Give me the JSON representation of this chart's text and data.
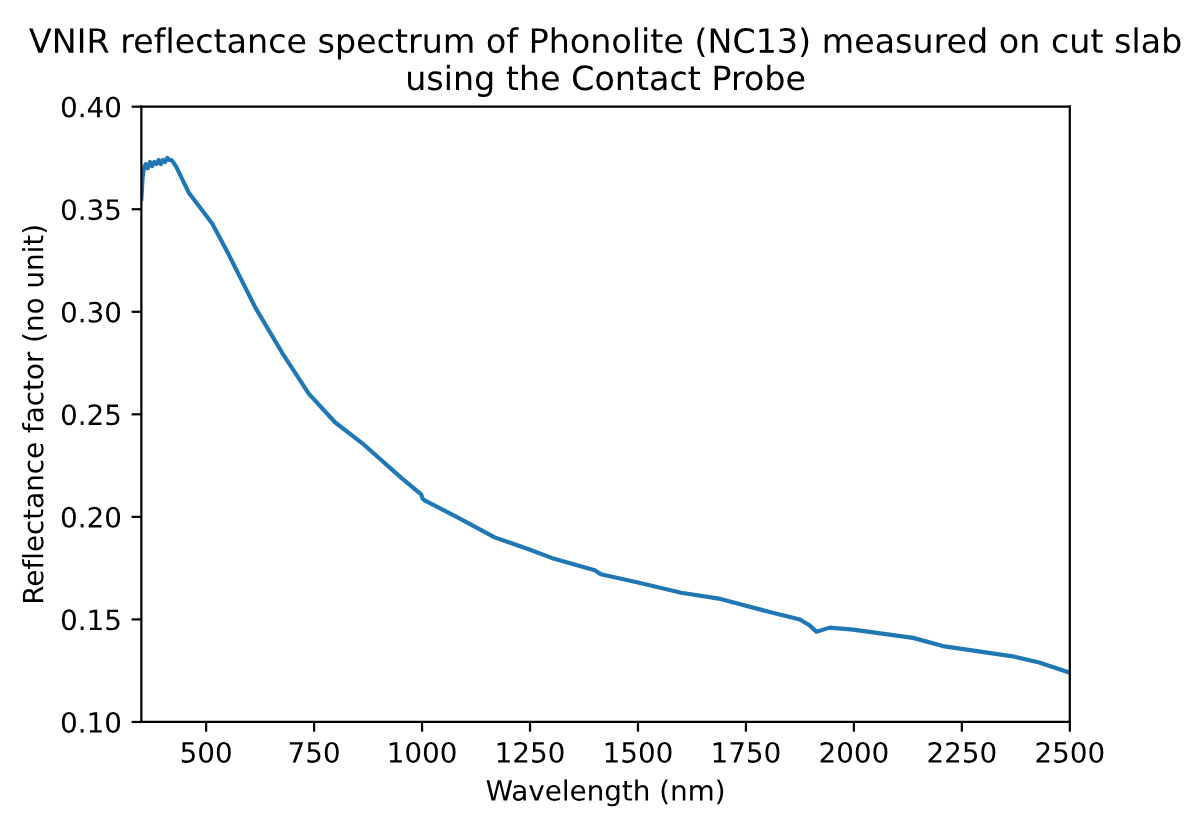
{
  "chart_data": {
    "type": "line",
    "title": "VNIR reflectance spectrum of Phonolite (NC13) measured on cut slab\nusing the Contact Probe",
    "xlabel": "Wavelength (nm)",
    "ylabel": "Reflectance factor (no unit)",
    "series": [
      {
        "color": "#1f77b4",
        "x": [
          350,
          353,
          356,
          360,
          365,
          370,
          375,
          380,
          385,
          390,
          395,
          400,
          405,
          410,
          415,
          420,
          430,
          460,
          514,
          552,
          614,
          676,
          738,
          799,
          861,
          952,
          998,
          1001,
          1006,
          1080,
          1168,
          1250,
          1300,
          1400,
          1414,
          1500,
          1600,
          1691,
          1798,
          1875,
          1898,
          1913,
          1944,
          1998,
          2137,
          2206,
          2368,
          2429,
          2500
        ],
        "values": [
          0.355,
          0.366,
          0.37,
          0.372,
          0.37,
          0.373,
          0.371,
          0.373,
          0.372,
          0.374,
          0.372,
          0.374,
          0.373,
          0.375,
          0.374,
          0.374,
          0.371,
          0.358,
          0.343,
          0.328,
          0.302,
          0.28,
          0.26,
          0.246,
          0.236,
          0.219,
          0.211,
          0.209,
          0.208,
          0.2,
          0.19,
          0.184,
          0.18,
          0.174,
          0.172,
          0.168,
          0.163,
          0.16,
          0.154,
          0.15,
          0.147,
          0.144,
          0.146,
          0.145,
          0.141,
          0.137,
          0.132,
          0.129,
          0.124
        ]
      }
    ],
    "xlim": [
      350,
      2500
    ],
    "xticks": [
      500,
      750,
      1000,
      1250,
      1500,
      1750,
      2000,
      2250,
      2500
    ],
    "ylim": [
      0.1,
      0.4
    ],
    "yticks": [
      {
        "value": 0.1,
        "label": "0.10"
      },
      {
        "value": 0.15,
        "label": "0.15"
      },
      {
        "value": 0.2,
        "label": "0.20"
      },
      {
        "value": 0.25,
        "label": "0.25"
      },
      {
        "value": 0.3,
        "label": "0.30"
      },
      {
        "value": 0.35,
        "label": "0.35"
      },
      {
        "value": 0.4,
        "label": "0.40"
      }
    ],
    "grid": false,
    "marker": "none",
    "line_style": "solid"
  }
}
